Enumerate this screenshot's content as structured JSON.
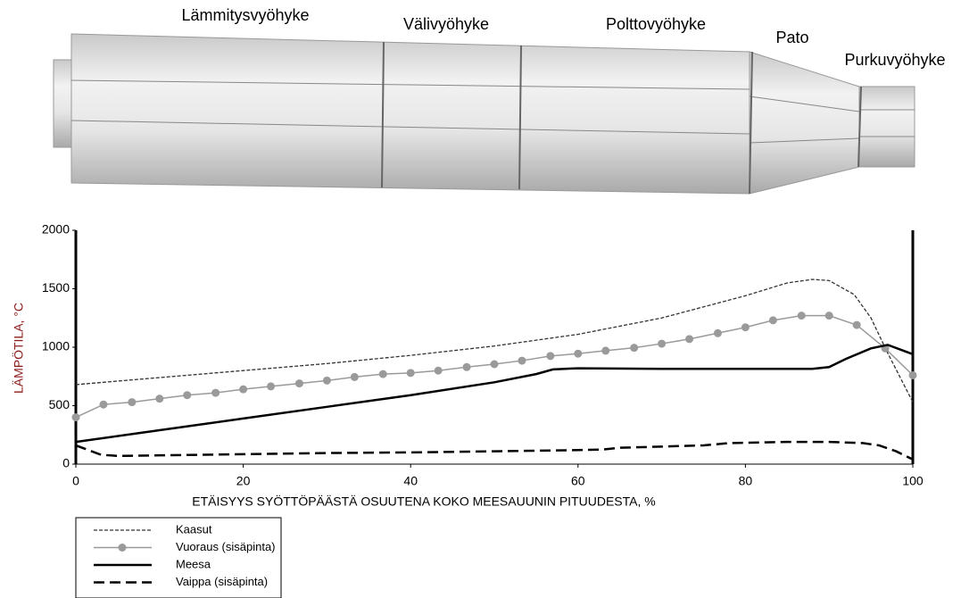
{
  "chart_data": {
    "type": "line",
    "annotations": [
      "Lämmitysvyöhyke",
      "Välivyöhyke",
      "Polttovyöhyke",
      "Pato",
      "Purkuvyöhyke"
    ],
    "xlabel": "ETÄISYYS SYÖTTÖPÄÄSTÄ OSUUTENA KOKO MEESAUUNIN PITUUDESTA, %",
    "ylabel": "LÄMPÖTILA, °C",
    "xlim": [
      0,
      100
    ],
    "xticks": [
      0,
      20,
      40,
      60,
      80,
      100
    ],
    "ylim": [
      0,
      2000
    ],
    "yticks": [
      0,
      500,
      1000,
      1500,
      2000
    ],
    "legend": "bottom-left",
    "series": [
      {
        "name": "Kaasut",
        "color": "#333333",
        "linestyle": "dotted",
        "x": [
          0,
          10,
          20,
          30,
          40,
          50,
          60,
          70,
          80,
          85,
          88,
          90,
          93,
          95,
          97,
          100
        ],
        "values": [
          680,
          740,
          800,
          860,
          930,
          1010,
          1110,
          1250,
          1440,
          1550,
          1580,
          1570,
          1450,
          1250,
          950,
          530
        ]
      },
      {
        "name": "Vuoraus (sisäpinta)",
        "color": "#9a9a9a",
        "linestyle": "solid",
        "marker": "circle",
        "x": [
          0,
          3.3,
          6.7,
          10,
          13.3,
          16.7,
          20,
          23.3,
          26.7,
          30,
          33.3,
          36.7,
          40,
          43.3,
          46.7,
          50,
          53.3,
          56.7,
          60,
          63.3,
          66.7,
          70,
          73.3,
          76.7,
          80,
          83.3,
          86.7,
          90,
          93.3,
          96.7,
          100
        ],
        "values": [
          400,
          510,
          530,
          560,
          590,
          610,
          640,
          665,
          690,
          715,
          745,
          770,
          780,
          800,
          830,
          855,
          885,
          925,
          945,
          970,
          995,
          1030,
          1070,
          1120,
          1170,
          1230,
          1270,
          1270,
          1190,
          990,
          760
        ]
      },
      {
        "name": "Meesa",
        "color": "#000000",
        "linestyle": "solid",
        "x": [
          0,
          10,
          20,
          30,
          40,
          50,
          55,
          57,
          60,
          70,
          80,
          88,
          90,
          92,
          95,
          97,
          100
        ],
        "values": [
          190,
          290,
          390,
          490,
          590,
          700,
          770,
          810,
          820,
          815,
          815,
          815,
          830,
          900,
          990,
          1020,
          940
        ]
      },
      {
        "name": "Vaippa (sisäpinta)",
        "color": "#000000",
        "linestyle": "dashed",
        "x": [
          0,
          3,
          5,
          10,
          20,
          30,
          40,
          50,
          60,
          63,
          65,
          70,
          75,
          78,
          85,
          90,
          94,
          96,
          98,
          100
        ],
        "values": [
          160,
          80,
          70,
          75,
          85,
          95,
          100,
          110,
          120,
          125,
          140,
          150,
          160,
          180,
          190,
          190,
          180,
          160,
          110,
          40
        ]
      }
    ]
  }
}
